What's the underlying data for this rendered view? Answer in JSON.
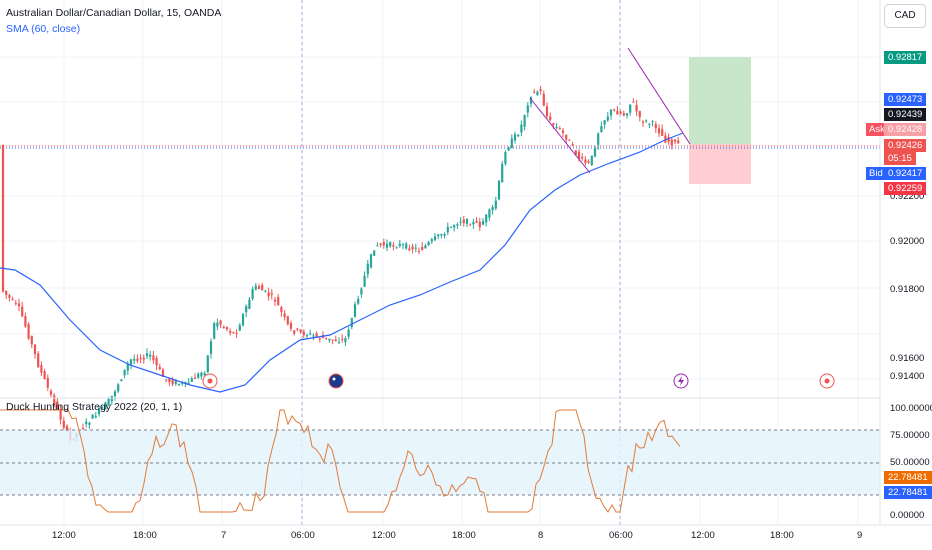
{
  "header": {
    "symbol_title": "Australian Dollar/Canadian Dollar, 15, OANDA",
    "sma_label": "SMA (60, close)",
    "indicator_label": "Duck Hunting Strategy 2022 (20, 1, 1)"
  },
  "currency_button": "CAD",
  "price_axis": {
    "ticks": [
      "0.91400",
      "0.91600",
      "0.91800",
      "0.92000",
      "0.92200"
    ],
    "range": [
      0.9132,
      0.9292
    ]
  },
  "price_badges": {
    "tp": "0.92817",
    "sma": "0.92473",
    "last_high": "0.92439",
    "ask_label": "Ask",
    "ask": "0.92428",
    "close": "0.92426",
    "countdown": "05:15",
    "bid_label": "Bid",
    "bid": "0.92417",
    "sl": "0.92259"
  },
  "indicator_axis": {
    "ticks": [
      "100.00000",
      "75.00000",
      "50.00000",
      "0.00000"
    ],
    "value_badge_1": "22.78481",
    "value_badge_2": "22.78481"
  },
  "time_axis": {
    "labels": [
      "12:00",
      "18:00",
      "7",
      "06:00",
      "12:00",
      "18:00",
      "8",
      "06:00",
      "12:00",
      "18:00",
      "9"
    ]
  },
  "colors": {
    "up": "#26a69a",
    "down": "#ef5350",
    "sma": "#2962ff",
    "oscillator": "#e07b39",
    "tp_zone": "#c8e6c9",
    "sl_zone": "#ffcdd2",
    "tp_badge": "#089981",
    "sl_badge": "#f23645",
    "bid_badge": "#2962ff"
  },
  "event_icons": [
    "canada-flag-icon",
    "australia-flag-icon",
    "lightning-icon",
    "canada-flag-icon"
  ]
}
